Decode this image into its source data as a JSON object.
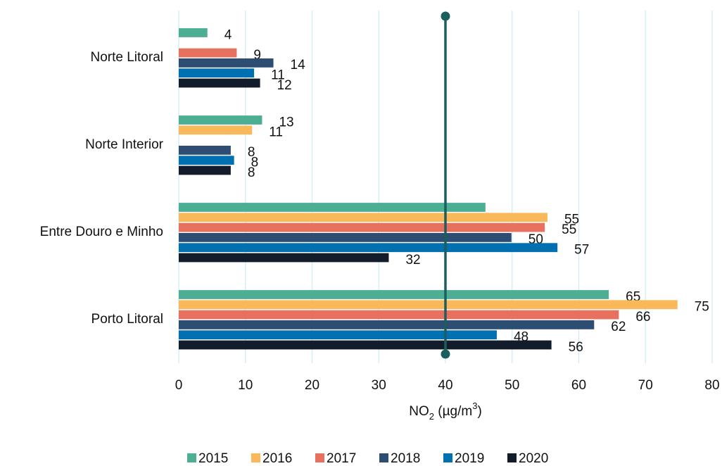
{
  "chart_data": {
    "type": "bar",
    "orientation": "horizontal",
    "categories": [
      "Norte Litoral",
      "Norte Interior",
      "Entre Douro e Minho",
      "Porto Litoral"
    ],
    "series": [
      {
        "name": "2015",
        "color": "#4caf94",
        "values": [
          4.3,
          12.5,
          46,
          64.5
        ],
        "value_labels": [
          "4",
          "13",
          null,
          "65"
        ]
      },
      {
        "name": "2016",
        "color": "#f9b95a",
        "values": [
          null,
          11,
          55.3,
          74.8
        ],
        "value_labels": [
          null,
          "11",
          "55",
          "75"
        ]
      },
      {
        "name": "2017",
        "color": "#e8705f",
        "values": [
          8.7,
          null,
          54.9,
          66
        ],
        "value_labels": [
          "9",
          null,
          "55",
          "66"
        ]
      },
      {
        "name": "2018",
        "color": "#2e4d72",
        "values": [
          14.2,
          7.8,
          49.9,
          62.3
        ],
        "value_labels": [
          "14",
          "8",
          "50",
          "62"
        ]
      },
      {
        "name": "2019",
        "color": "#0070b0",
        "values": [
          11.3,
          8.3,
          56.8,
          47.7
        ],
        "value_labels": [
          "11",
          "8",
          "57",
          "48"
        ]
      },
      {
        "name": "2020",
        "color": "#131c2a",
        "values": [
          12.2,
          7.8,
          31.5,
          55.9
        ],
        "value_labels": [
          "12",
          "8",
          "32",
          "56"
        ]
      }
    ],
    "xlabel_parts": [
      "NO",
      "2",
      " (µg/m",
      "3",
      ")"
    ],
    "xlim": [
      0,
      80
    ],
    "xticks": [
      0,
      10,
      20,
      30,
      40,
      50,
      60,
      70,
      80
    ],
    "grid": true,
    "grid_color": "#cdeff3",
    "reference_line": {
      "value": 40,
      "color": "#1a5e5e"
    },
    "legend": "bottom"
  }
}
